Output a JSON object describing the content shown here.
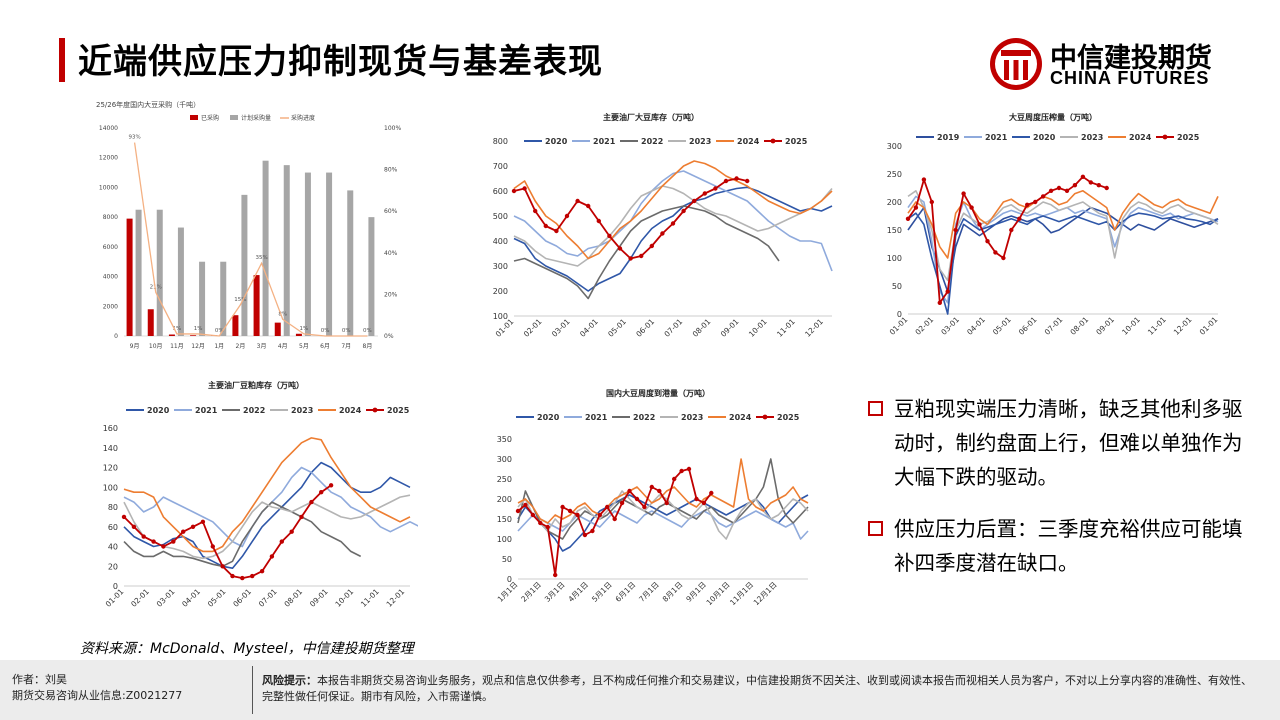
{
  "header": {
    "title": "近端供应压力抑制现货与基差表现",
    "logo_cn": "中信建投期货",
    "logo_en": "CHINA FUTURES"
  },
  "bullets": [
    "豆粕现实端压力清晰，缺乏其他利多驱动时，制约盘面上行，但难以单独作为大幅下跌的驱动。",
    "供应压力后置：三季度充裕供应可能填补四季度潜在缺口。"
  ],
  "source": "资料来源：McDonald、Mysteel，中信建投期货整理",
  "footer": {
    "author": "作者：刘昊",
    "license": "期货交易咨询从业信息:Z0021277",
    "risk_label": "风险提示：",
    "risk_text": "本报告非期货交易咨询业务服务，观点和信息仅供参考，且不构成任何推介和交易建议，中信建投期货不因关注、收到或阅读本报告而视相关人员为客户，不对以上分享内容的准确性、有效性、完整性做任何保证。期市有风险，入市需谨慎。"
  },
  "colors": {
    "brand_red": "#c00000",
    "y2019": "#2e4f9e",
    "y2020": "#2f57a8",
    "y2021": "#8faadc",
    "y2022": "#6b6b6b",
    "y2023": "#b4b4b4",
    "y2024": "#ed7d31",
    "y2025": "#c00000"
  },
  "chart_data": [
    {
      "id": "purchases",
      "type": "bar",
      "title": "25/26年度国内大豆采购（千吨）",
      "legend": [
        "已采购",
        "计划采购量",
        "采购进度"
      ],
      "categories": [
        "9月",
        "10月",
        "11月",
        "12月",
        "1月",
        "2月",
        "3月",
        "4月",
        "5月",
        "6月",
        "7月",
        "8月"
      ],
      "series": [
        {
          "name": "已采购",
          "values": [
            7900,
            1800,
            100,
            50,
            50,
            1400,
            4100,
            900,
            150,
            0,
            0,
            0
          ]
        },
        {
          "name": "计划采购量",
          "values": [
            8500,
            8500,
            7300,
            5000,
            5000,
            9500,
            11800,
            11500,
            11000,
            11000,
            9800,
            8000
          ]
        },
        {
          "name": "采购进度",
          "axis": "right",
          "values": [
            93,
            21,
            1,
            1,
            0,
            15,
            35,
            8,
            1,
            0,
            0,
            0
          ]
        }
      ],
      "data_labels": [
        "93%",
        "21%",
        "1%",
        "1%",
        "0%",
        "15%",
        "35%",
        "8%",
        "1%",
        "0%",
        "0%",
        "0%"
      ],
      "ylim": [
        0,
        14000
      ],
      "yticks": [
        0,
        2000,
        4000,
        6000,
        8000,
        10000,
        12000,
        14000
      ],
      "y2lim": [
        0,
        100
      ],
      "y2ticks": [
        "0%",
        "20%",
        "40%",
        "60%",
        "80%",
        "100%"
      ]
    },
    {
      "id": "soy_stock",
      "type": "line",
      "title": "主要油厂大豆库存（万吨）",
      "x_ticks": [
        "01-01",
        "02-01",
        "03-01",
        "04-01",
        "05-01",
        "06-01",
        "07-01",
        "08-01",
        "09-01",
        "10-01",
        "11-01",
        "12-01"
      ],
      "ylim": [
        100,
        800
      ],
      "yticks": [
        100,
        200,
        300,
        400,
        500,
        600,
        700,
        800
      ],
      "series": [
        {
          "name": "2020",
          "values": [
            410,
            390,
            330,
            300,
            280,
            260,
            230,
            200,
            230,
            250,
            270,
            330,
            400,
            450,
            480,
            500,
            540,
            560,
            570,
            590,
            600,
            610,
            615,
            600,
            580,
            560,
            540,
            520,
            530,
            520,
            540
          ]
        },
        {
          "name": "2021",
          "values": [
            500,
            480,
            440,
            400,
            380,
            350,
            340,
            370,
            380,
            400,
            440,
            480,
            550,
            600,
            640,
            670,
            680,
            660,
            640,
            620,
            600,
            580,
            560,
            520,
            480,
            450,
            420,
            400,
            400,
            390,
            280
          ]
        },
        {
          "name": "2022",
          "values": [
            320,
            330,
            310,
            290,
            270,
            250,
            220,
            170,
            250,
            320,
            380,
            440,
            480,
            500,
            520,
            530,
            540,
            530,
            520,
            500,
            470,
            450,
            430,
            410,
            380,
            320
          ]
        },
        {
          "name": "2023",
          "values": [
            420,
            400,
            360,
            330,
            320,
            310,
            300,
            330,
            380,
            420,
            470,
            530,
            580,
            600,
            620,
            610,
            590,
            560,
            530,
            510,
            500,
            480,
            460,
            440,
            450,
            470,
            490,
            510,
            530,
            560,
            610
          ]
        },
        {
          "name": "2024",
          "values": [
            610,
            640,
            560,
            500,
            470,
            420,
            380,
            330,
            350,
            400,
            450,
            480,
            520,
            570,
            620,
            660,
            700,
            720,
            710,
            690,
            660,
            640,
            620,
            590,
            560,
            540,
            520,
            510,
            530,
            560,
            600
          ]
        },
        {
          "name": "2025",
          "values": [
            600,
            610,
            520,
            460,
            440,
            500,
            560,
            540,
            480,
            420,
            370,
            330,
            340,
            380,
            430,
            470,
            520,
            560,
            590,
            610,
            640,
            650,
            640
          ]
        }
      ]
    },
    {
      "id": "crush",
      "type": "line",
      "title": "大豆周度压榨量（万吨）",
      "x_ticks": [
        "01-01",
        "02-01",
        "03-01",
        "04-01",
        "05-01",
        "06-01",
        "07-01",
        "08-01",
        "09-01",
        "10-01",
        "11-01",
        "12-01",
        "01-01"
      ],
      "ylim": [
        0,
        300
      ],
      "yticks": [
        0,
        50,
        100,
        150,
        200,
        250,
        300
      ],
      "series": [
        {
          "name": "2019",
          "values": [
            150,
            170,
            190,
            120,
            80,
            40,
            120,
            160,
            150,
            140,
            150,
            160,
            170,
            175,
            170,
            165,
            170,
            160,
            145,
            150,
            160,
            170,
            180,
            190,
            185,
            180,
            170,
            160,
            150,
            160,
            155,
            150,
            160,
            170,
            165,
            160,
            155,
            160,
            165,
            170
          ]
        },
        {
          "name": "2021",
          "values": [
            190,
            210,
            200,
            130,
            40,
            20,
            160,
            200,
            170,
            150,
            160,
            170,
            180,
            185,
            180,
            175,
            180,
            175,
            180,
            185,
            190,
            180,
            185,
            180,
            175,
            170,
            120,
            160,
            180,
            190,
            185,
            180,
            175,
            180,
            170,
            175,
            180,
            175,
            170,
            165
          ]
        },
        {
          "name": "2020",
          "values": [
            170,
            180,
            160,
            100,
            50,
            0,
            140,
            170,
            160,
            150,
            155,
            160,
            165,
            170,
            165,
            160,
            170,
            175,
            170,
            165,
            170,
            175,
            170,
            165,
            160,
            165,
            150,
            165,
            175,
            180,
            178,
            175,
            170,
            172,
            175,
            170,
            168,
            165,
            160,
            170
          ]
        },
        {
          "name": "2023",
          "values": [
            210,
            220,
            190,
            150,
            80,
            60,
            150,
            180,
            170,
            160,
            165,
            175,
            190,
            195,
            185,
            180,
            190,
            200,
            195,
            185,
            190,
            195,
            200,
            190,
            180,
            175,
            100,
            170,
            190,
            200,
            195,
            185,
            180,
            190,
            195,
            185,
            180,
            175,
            170,
            160
          ]
        },
        {
          "name": "2024",
          "values": [
            180,
            200,
            190,
            160,
            120,
            100,
            180,
            200,
            190,
            170,
            160,
            180,
            200,
            205,
            195,
            190,
            200,
            210,
            205,
            195,
            200,
            215,
            220,
            210,
            200,
            190,
            150,
            180,
            200,
            215,
            205,
            195,
            190,
            200,
            205,
            195,
            190,
            185,
            180,
            210
          ]
        },
        {
          "name": "2025",
          "values": [
            170,
            190,
            240,
            200,
            20,
            40,
            150,
            215,
            190,
            160,
            130,
            110,
            100,
            150,
            170,
            195,
            200,
            210,
            220,
            225,
            220,
            230,
            245,
            235,
            230,
            225
          ]
        }
      ]
    },
    {
      "id": "meal_stock",
      "type": "line",
      "title": "主要油厂豆粕库存（万吨）",
      "x_ticks": [
        "01-01",
        "02-01",
        "03-01",
        "04-01",
        "05-01",
        "06-01",
        "07-01",
        "08-01",
        "09-01",
        "10-01",
        "11-01",
        "12-01"
      ],
      "ylim": [
        0,
        160
      ],
      "yticks": [
        0,
        20,
        40,
        60,
        80,
        100,
        120,
        140,
        160
      ],
      "series": [
        {
          "name": "2020",
          "values": [
            60,
            50,
            45,
            40,
            42,
            48,
            50,
            45,
            30,
            25,
            20,
            18,
            30,
            45,
            60,
            70,
            80,
            90,
            100,
            115,
            125,
            120,
            110,
            100,
            95,
            95,
            100,
            110,
            105,
            100
          ]
        },
        {
          "name": "2021",
          "values": [
            90,
            85,
            75,
            80,
            90,
            85,
            80,
            75,
            70,
            65,
            55,
            45,
            40,
            60,
            75,
            85,
            95,
            110,
            120,
            115,
            105,
            95,
            90,
            80,
            75,
            70,
            60,
            55,
            60,
            65,
            60
          ]
        },
        {
          "name": "2022",
          "values": [
            45,
            35,
            30,
            30,
            35,
            30,
            30,
            28,
            25,
            22,
            20,
            25,
            45,
            60,
            75,
            85,
            80,
            75,
            70,
            65,
            55,
            50,
            45,
            35,
            30
          ]
        },
        {
          "name": "2023",
          "values": [
            85,
            65,
            50,
            45,
            40,
            38,
            35,
            30,
            28,
            30,
            35,
            45,
            60,
            75,
            85,
            80,
            78,
            75,
            80,
            85,
            80,
            75,
            70,
            68,
            70,
            75,
            80,
            85,
            90,
            92
          ]
        },
        {
          "name": "2024",
          "values": [
            98,
            95,
            95,
            90,
            70,
            60,
            50,
            40,
            35,
            35,
            40,
            55,
            65,
            80,
            95,
            110,
            125,
            135,
            145,
            150,
            148,
            130,
            115,
            100,
            90,
            80,
            75,
            70,
            65,
            70
          ]
        },
        {
          "name": "2025",
          "values": [
            70,
            60,
            50,
            45,
            40,
            45,
            55,
            60,
            65,
            40,
            20,
            10,
            8,
            10,
            15,
            30,
            45,
            55,
            70,
            85,
            95,
            102
          ]
        }
      ]
    },
    {
      "id": "arrivals",
      "type": "line",
      "title": "国内大豆周度到港量（万吨）",
      "x_ticks": [
        "1月1日",
        "2月1日",
        "3月1日",
        "4月1日",
        "5月1日",
        "6月1日",
        "7月1日",
        "8月1日",
        "9月1日",
        "10月1日",
        "11月1日",
        "12月1日"
      ],
      "ylim": [
        0,
        350
      ],
      "yticks": [
        0,
        50,
        100,
        150,
        200,
        250,
        300,
        350
      ],
      "series": [
        {
          "name": "2020",
          "values": [
            150,
            180,
            160,
            140,
            120,
            100,
            70,
            80,
            100,
            120,
            150,
            170,
            180,
            190,
            200,
            210,
            200,
            190,
            180,
            170,
            160,
            170,
            180,
            190,
            200,
            190,
            180,
            170,
            160,
            170,
            180,
            190,
            200,
            180,
            150,
            140,
            160,
            180,
            200,
            210
          ]
        },
        {
          "name": "2021",
          "values": [
            120,
            140,
            160,
            150,
            140,
            130,
            120,
            140,
            160,
            150,
            140,
            130,
            150,
            170,
            160,
            150,
            140,
            160,
            170,
            160,
            150,
            140,
            130,
            150,
            160,
            170,
            160,
            140,
            130,
            140,
            150,
            160,
            170,
            160,
            150,
            140,
            130,
            140,
            100,
            120
          ]
        },
        {
          "name": "2022",
          "values": [
            140,
            220,
            180,
            140,
            120,
            110,
            100,
            130,
            150,
            170,
            160,
            150,
            160,
            180,
            200,
            190,
            180,
            170,
            160,
            180,
            190,
            180,
            170,
            160,
            150,
            170,
            180,
            160,
            150,
            140,
            160,
            180,
            200,
            230,
            300,
            200,
            160,
            140,
            160,
            180
          ]
        },
        {
          "name": "2023",
          "values": [
            180,
            200,
            160,
            140,
            120,
            150,
            130,
            140,
            170,
            180,
            160,
            150,
            170,
            190,
            220,
            200,
            180,
            170,
            190,
            210,
            200,
            180,
            160,
            150,
            170,
            190,
            160,
            120,
            100,
            140,
            170,
            190,
            200,
            170,
            150,
            160,
            180,
            200,
            190,
            170
          ]
        },
        {
          "name": "2024",
          "values": [
            190,
            200,
            180,
            150,
            140,
            160,
            150,
            160,
            180,
            190,
            170,
            160,
            180,
            200,
            210,
            220,
            230,
            210,
            190,
            200,
            220,
            230,
            210,
            190,
            180,
            200,
            210,
            200,
            190,
            180,
            300,
            200,
            180,
            170,
            190,
            200,
            210,
            230,
            200,
            190
          ]
        },
        {
          "name": "2025",
          "values": [
            170,
            185,
            160,
            140,
            130,
            10,
            180,
            170,
            160,
            110,
            120,
            160,
            180,
            150,
            190,
            220,
            200,
            180,
            230,
            220,
            190,
            250,
            270,
            275,
            200,
            190,
            215
          ]
        }
      ]
    }
  ]
}
